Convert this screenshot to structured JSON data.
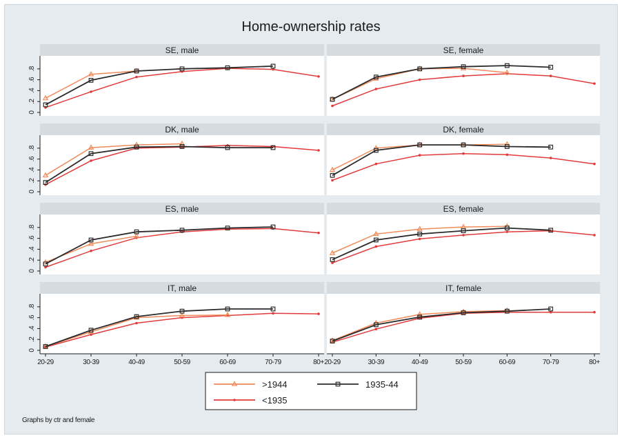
{
  "title": "Home-ownership rates",
  "note": "Graphs by ctr and female",
  "colors": {
    "gt1944": "#f08a5a",
    "c1935_44": "#2a2a2a",
    "lt1935": "#e23a3a",
    "strip": "#d4dbe1",
    "plot": "#ffffff",
    "background": "#e6ebef"
  },
  "chart_data": {
    "type": "line",
    "x_categories": [
      "20-29",
      "30-39",
      "40-49",
      "50-59",
      "60-69",
      "70-79",
      "80+"
    ],
    "y_ticks": [
      "0",
      ".2",
      ".4",
      ".6",
      ".8"
    ],
    "ylim": [
      0,
      0.95
    ],
    "grid": false,
    "legend_position": "bottom",
    "legend": [
      {
        "name": ">1944",
        "color": "#f08a5a",
        "marker": "triangle"
      },
      {
        "name": "1935-44",
        "color": "#2a2a2a",
        "marker": "square"
      },
      {
        "name": "<1935",
        "color": "#e23a3a",
        "marker": "dot"
      }
    ],
    "panels": [
      {
        "label": "SE, male",
        "series": [
          {
            "name": ">1944",
            "values": [
              0.26,
              0.7,
              0.76,
              null,
              null,
              null,
              null
            ]
          },
          {
            "name": "1935-44",
            "values": [
              0.14,
              0.59,
              0.76,
              0.8,
              0.82,
              0.85,
              null
            ]
          },
          {
            "name": "<1935",
            "values": [
              0.09,
              0.38,
              0.65,
              0.75,
              0.81,
              0.79,
              0.66
            ]
          }
        ]
      },
      {
        "label": "SE, female",
        "series": [
          {
            "name": ">1944",
            "values": [
              0.24,
              0.62,
              0.8,
              0.81,
              0.73,
              null,
              null
            ]
          },
          {
            "name": "1935-44",
            "values": [
              0.24,
              0.65,
              0.8,
              0.84,
              0.86,
              0.83,
              null
            ]
          },
          {
            "name": "<1935",
            "values": [
              0.12,
              0.43,
              0.6,
              0.67,
              0.71,
              0.67,
              0.53
            ]
          }
        ]
      },
      {
        "label": "DK, male",
        "series": [
          {
            "name": ">1944",
            "values": [
              0.3,
              0.81,
              0.86,
              0.88,
              null,
              null,
              null
            ]
          },
          {
            "name": "1935-44",
            "values": [
              0.17,
              0.7,
              0.82,
              0.83,
              0.81,
              0.81,
              null
            ]
          },
          {
            "name": "<1935",
            "values": [
              0.13,
              0.57,
              0.8,
              0.82,
              0.85,
              0.83,
              0.76
            ]
          }
        ]
      },
      {
        "label": "DK, female",
        "series": [
          {
            "name": ">1944",
            "values": [
              0.4,
              0.8,
              0.86,
              0.86,
              0.87,
              null,
              null
            ]
          },
          {
            "name": "1935-44",
            "values": [
              0.3,
              0.76,
              0.86,
              0.86,
              0.83,
              0.82,
              null
            ]
          },
          {
            "name": "<1935",
            "values": [
              0.21,
              0.51,
              0.67,
              0.7,
              0.68,
              0.62,
              0.51
            ]
          }
        ]
      },
      {
        "label": "ES, male",
        "series": [
          {
            "name": ">1944",
            "values": [
              0.16,
              0.5,
              0.64,
              null,
              null,
              null,
              null
            ]
          },
          {
            "name": "1935-44",
            "values": [
              0.13,
              0.57,
              0.72,
              0.75,
              0.79,
              0.81,
              null
            ]
          },
          {
            "name": "<1935",
            "values": [
              0.07,
              0.37,
              0.61,
              0.72,
              0.77,
              0.78,
              0.7
            ]
          }
        ]
      },
      {
        "label": "ES, female",
        "series": [
          {
            "name": ">1944",
            "values": [
              0.33,
              0.68,
              0.77,
              0.81,
              0.82,
              null,
              null
            ]
          },
          {
            "name": "1935-44",
            "values": [
              0.21,
              0.57,
              0.68,
              0.74,
              0.79,
              0.75,
              null
            ]
          },
          {
            "name": "<1935",
            "values": [
              0.15,
              0.45,
              0.59,
              0.66,
              0.72,
              0.74,
              0.66
            ]
          }
        ]
      },
      {
        "label": "IT, male",
        "series": [
          {
            "name": ">1944",
            "values": [
              0.07,
              0.34,
              0.6,
              0.64,
              0.65,
              null,
              null
            ]
          },
          {
            "name": "1935-44",
            "values": [
              0.07,
              0.37,
              0.62,
              0.72,
              0.76,
              0.76,
              null
            ]
          },
          {
            "name": "<1935",
            "values": [
              0.06,
              0.29,
              0.5,
              0.6,
              0.64,
              0.68,
              0.67
            ]
          }
        ]
      },
      {
        "label": "IT, female",
        "series": [
          {
            "name": ">1944",
            "values": [
              0.18,
              0.5,
              0.66,
              0.71,
              0.73,
              null,
              null
            ]
          },
          {
            "name": "1935-44",
            "values": [
              0.17,
              0.47,
              0.61,
              0.69,
              0.72,
              0.76,
              null
            ]
          },
          {
            "name": "<1935",
            "values": [
              0.15,
              0.39,
              0.59,
              0.68,
              0.7,
              0.7,
              0.7
            ]
          }
        ]
      }
    ]
  }
}
